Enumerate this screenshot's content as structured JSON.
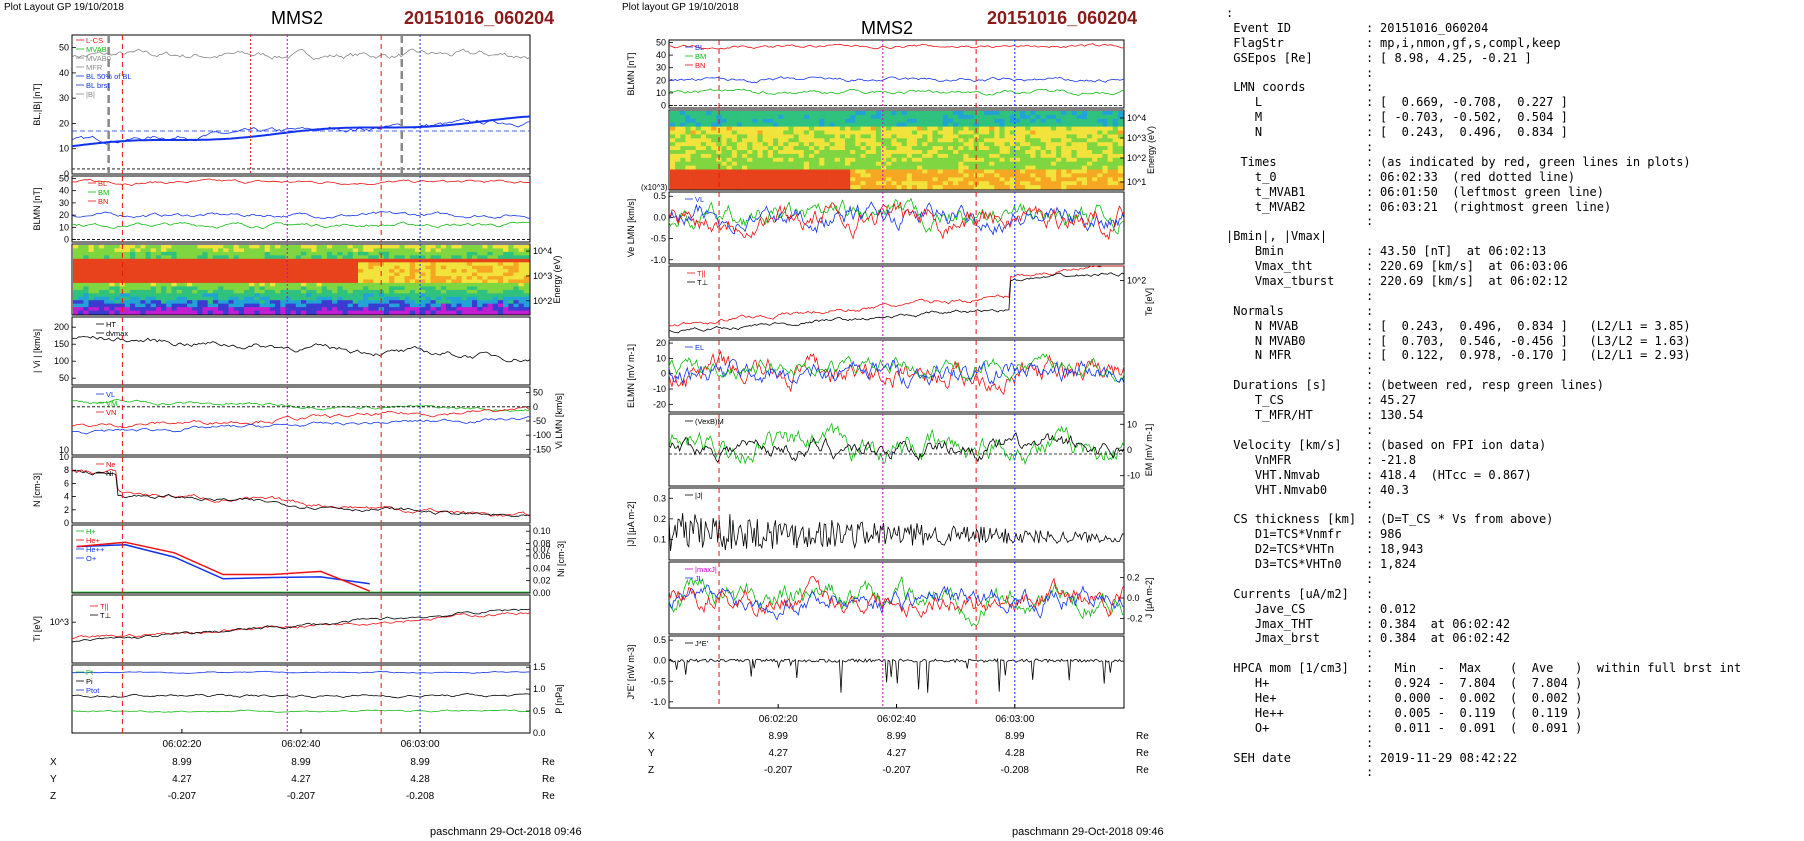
{
  "left": {
    "header": "Plot Layout GP 19/10/2018",
    "spacecraft": "MMS2",
    "event": "20151016_060204",
    "footer": "paschmann 29-Oct-2018 09:46",
    "xticks": [
      "06:02:20",
      "06:02:40",
      "06:03:00"
    ],
    "ephem": [
      {
        "name": "X",
        "values": [
          "8.99",
          "8.99",
          "8.99"
        ],
        "unit": "Re"
      },
      {
        "name": "Y",
        "values": [
          "4.27",
          "4.27",
          "4.28"
        ],
        "unit": "Re"
      },
      {
        "name": "Z",
        "values": [
          "-0.207",
          "-0.207",
          "-0.208"
        ],
        "unit": "Re"
      }
    ]
  },
  "right": {
    "header": "Plot layout GP 19/10/2018",
    "spacecraft": "MMS2",
    "event": "20151016_060204",
    "footer": "paschmann 29-Oct-2018 09:46",
    "xticks": [
      "06:02:20",
      "06:02:40",
      "06:03:00"
    ],
    "ephem": [
      {
        "name": "X",
        "values": [
          "8.99",
          "8.99",
          "8.99"
        ],
        "unit": "Re"
      },
      {
        "name": "Y",
        "values": [
          "4.27",
          "4.27",
          "4.28"
        ],
        "unit": "Re"
      },
      {
        "name": "Z",
        "values": [
          "-0.207",
          "-0.207",
          "-0.208"
        ],
        "unit": "Re"
      }
    ]
  },
  "colors": {
    "red": "#ee1111",
    "green": "#11bb11",
    "blue": "#1133ee",
    "black": "#000000",
    "magenta": "#cc00cc",
    "grey": "#888888",
    "title_red": "#8b1a1a"
  },
  "chart_data": [
    {
      "type": "line",
      "panel": "left",
      "time_range": [
        "06:02:04",
        "06:03:10"
      ],
      "markers": {
        "t_0": "06:02:33",
        "t_MVAB1": "06:01:50",
        "t_MVAB2": "06:03:21"
      },
      "subplots": [
        {
          "ylabel": "BL,|B| [nT]",
          "yticks": [
            "0",
            "10",
            "20",
            "30",
            "40",
            "50"
          ],
          "legend": [
            "L-CS",
            "MVAB",
            "MVAB0",
            "MFR",
            "BL 50% of BL",
            "BL brst",
            "|B|"
          ]
        },
        {
          "ylabel": "BLMN [nT]",
          "yticks": [
            "0",
            "10",
            "20",
            "30",
            "40",
            "50"
          ],
          "legend": [
            "BL",
            "BM",
            "BN"
          ]
        },
        {
          "type": "heatmap",
          "ylabel_right": "Energy (eV)",
          "yticks": [
            "10^4",
            "10^3",
            "10^2"
          ]
        },
        {
          "ylabel": "| Vi | [km/s]",
          "yticks": [
            "50",
            "100",
            "150",
            "200"
          ],
          "legend": [
            "HT",
            "dvmax"
          ]
        },
        {
          "ylabel_right": "Vi LMN [km/s]",
          "yticks_right": [
            "50",
            "0",
            "-50",
            "-100",
            "-150"
          ],
          "legend": [
            "VL",
            "VM",
            "VN"
          ]
        },
        {
          "ylabel": "N [cm-3]",
          "yticks": [
            "0",
            "2",
            "4",
            "6",
            "8",
            "10"
          ],
          "legend": [
            "Ne",
            "Ni"
          ]
        },
        {
          "ylabel_right": "Ni [cm-3]",
          "yticks_right": [
            "0.10",
            "0.08",
            "0.07",
            "0.06",
            "0.04",
            "0.02",
            "0.00"
          ],
          "legend": [
            "H+",
            "He+",
            "He++",
            "O+"
          ]
        },
        {
          "ylabel": "Ti [eV]",
          "yticks": [
            "10^3"
          ],
          "legend": [
            "T||",
            "T⊥"
          ]
        },
        {
          "ylabel_right": "P [nPa]",
          "yticks_right": [
            "0.0",
            "0.5",
            "1.0",
            "1.5"
          ],
          "legend": [
            "Pt",
            "Pi",
            "Ptot"
          ]
        }
      ]
    },
    {
      "type": "line",
      "panel": "right",
      "time_range": [
        "06:02:04",
        "06:03:10"
      ],
      "subplots": [
        {
          "ylabel": "BLMN [nT]",
          "yticks": [
            "0",
            "10",
            "20",
            "30",
            "40",
            "50"
          ],
          "legend": [
            "BL",
            "BM",
            "BN"
          ]
        },
        {
          "type": "heatmap",
          "ylabel_right": "Energy (eV)",
          "yticks": [
            "10^4",
            "10^3",
            "10^2",
            "10^1"
          ]
        },
        {
          "ylabel": "Ve LMN [km/s]",
          "scale_note": "(x10^3)",
          "yticks": [
            "0.5",
            "0.0",
            "-0.5",
            "-1.0"
          ],
          "legend": [
            "VL"
          ]
        },
        {
          "ylabel_right": "Te [eV]",
          "yticks_right": [
            "10^2"
          ],
          "legend": [
            "T||",
            "T⊥"
          ]
        },
        {
          "ylabel": "ELMN [mV m-1]",
          "yticks": [
            "20",
            "10",
            "0",
            "-10",
            "-20"
          ],
          "legend": [
            "EL"
          ]
        },
        {
          "ylabel_right": "EM [mV m-1]",
          "yticks_right": [
            "10",
            "0",
            "-10"
          ],
          "legend": [
            "(VexB)M"
          ]
        },
        {
          "ylabel": "|J| [μA m-2]",
          "yticks": [
            "0.3",
            "0.2",
            "0.1"
          ],
          "legend": [
            "|J|"
          ]
        },
        {
          "ylabel_right": "J [μA m-2]",
          "yticks_right": [
            "0.2",
            "0.0",
            "-0.2"
          ],
          "legend": [
            "|maxJ|",
            "JL"
          ]
        },
        {
          "ylabel": "J*E' [nW m-3]",
          "yticks": [
            "0.5",
            "0.0",
            "-0.5",
            "-1.0"
          ],
          "legend": [
            "J*E'"
          ]
        }
      ]
    }
  ],
  "info": [
    {
      "k": ":",
      "c": "",
      "v": ""
    },
    {
      "k": " Event ID",
      "c": ":",
      "v": "20151016_060204"
    },
    {
      "k": " FlagStr",
      "c": ":",
      "v": "mp,i,nmon,gf,s,compl,keep"
    },
    {
      "k": " GSEpos [Re]",
      "c": ":",
      "v": "[ 8.98, 4.25, -0.21 ]"
    },
    {
      "k": "",
      "c": ":",
      "v": ""
    },
    {
      "k": " LMN coords",
      "c": ":",
      "v": ""
    },
    {
      "k": "    L",
      "c": ":",
      "v": "[  0.669, -0.708,  0.227 ]"
    },
    {
      "k": "    M",
      "c": ":",
      "v": "[ -0.703, -0.502,  0.504 ]"
    },
    {
      "k": "    N",
      "c": ":",
      "v": "[  0.243,  0.496,  0.834 ]"
    },
    {
      "k": "",
      "c": ":",
      "v": ""
    },
    {
      "k": "  Times",
      "c": ":",
      "v": "(as indicated by red, green lines in plots)"
    },
    {
      "k": "    t_0",
      "c": ":",
      "v": "06:02:33  (red dotted line)"
    },
    {
      "k": "    t_MVAB1",
      "c": ":",
      "v": "06:01:50  (leftmost green line)"
    },
    {
      "k": "    t_MVAB2",
      "c": ":",
      "v": "06:03:21  (rightmost green line)"
    },
    {
      "k": "",
      "c": ":",
      "v": ""
    },
    {
      "k": "|Bmin|, |Vmax|",
      "c": "",
      "v": ""
    },
    {
      "k": "    Bmin",
      "c": ":",
      "v": "43.50 [nT]  at 06:02:13"
    },
    {
      "k": "    Vmax_tht",
      "c": ":",
      "v": "220.69 [km/s]  at 06:03:06"
    },
    {
      "k": "    Vmax_tburst",
      "c": ":",
      "v": "220.69 [km/s]  at 06:02:12"
    },
    {
      "k": "",
      "c": ":",
      "v": ""
    },
    {
      "k": " Normals",
      "c": ":",
      "v": ""
    },
    {
      "k": "    N MVAB",
      "c": ":",
      "v": "[  0.243,  0.496,  0.834 ]   (L2/L1 = 3.85)"
    },
    {
      "k": "    N MVAB0",
      "c": ":",
      "v": "[  0.703,  0.546, -0.456 ]   (L3/L2 = 1.63)"
    },
    {
      "k": "    N MFR",
      "c": ":",
      "v": "[  0.122,  0.978, -0.170 ]   (L2/L1 = 2.93)"
    },
    {
      "k": "",
      "c": ":",
      "v": ""
    },
    {
      "k": " Durations [s]",
      "c": ":",
      "v": "(between red, resp green lines)"
    },
    {
      "k": "    T_CS",
      "c": ":",
      "v": "45.27"
    },
    {
      "k": "    T_MFR/HT",
      "c": ":",
      "v": "130.54"
    },
    {
      "k": "",
      "c": ":",
      "v": ""
    },
    {
      "k": " Velocity [km/s]",
      "c": ":",
      "v": "(based on FPI ion data)"
    },
    {
      "k": "    VnMFR",
      "c": ":",
      "v": "-21.8"
    },
    {
      "k": "    VHT.Nmvab",
      "c": ":",
      "v": "418.4  (HTcc = 0.867)"
    },
    {
      "k": "    VHT.Nmvab0",
      "c": ":",
      "v": "40.3"
    },
    {
      "k": "",
      "c": ":",
      "v": ""
    },
    {
      "k": " CS thickness [km]",
      "c": ":",
      "v": "(D=T_CS * Vs from above)"
    },
    {
      "k": "    D1=TCS*Vnmfr",
      "c": ":",
      "v": "986"
    },
    {
      "k": "    D2=TCS*VHTn",
      "c": ":",
      "v": "18,943"
    },
    {
      "k": "    D3=TCS*VHTn0",
      "c": ":",
      "v": "1,824"
    },
    {
      "k": "",
      "c": ":",
      "v": ""
    },
    {
      "k": " Currents [uA/m2]",
      "c": ":",
      "v": ""
    },
    {
      "k": "    Jave_CS",
      "c": ":",
      "v": "0.012"
    },
    {
      "k": "    Jmax_THT",
      "c": ":",
      "v": "0.384  at 06:02:42"
    },
    {
      "k": "    Jmax_brst",
      "c": ":",
      "v": "0.384  at 06:02:42"
    },
    {
      "k": "",
      "c": ":",
      "v": ""
    },
    {
      "k": " HPCA mom [1/cm3]",
      "c": ":",
      "v": "  Min   -  Max    (  Ave   )  within full brst int"
    },
    {
      "k": "    H+",
      "c": ":",
      "v": "  0.924 -  7.804  (  7.804 )"
    },
    {
      "k": "    He+",
      "c": ":",
      "v": "  0.000 -  0.002  (  0.002 )"
    },
    {
      "k": "    He++",
      "c": ":",
      "v": "  0.005 -  0.119  (  0.119 )"
    },
    {
      "k": "    O+",
      "c": ":",
      "v": "  0.011 -  0.091  (  0.091 )"
    },
    {
      "k": "",
      "c": ":",
      "v": ""
    },
    {
      "k": " SEH date",
      "c": ":",
      "v": "2019-11-29 08:42:22"
    },
    {
      "k": "",
      "c": ":",
      "v": ""
    }
  ]
}
